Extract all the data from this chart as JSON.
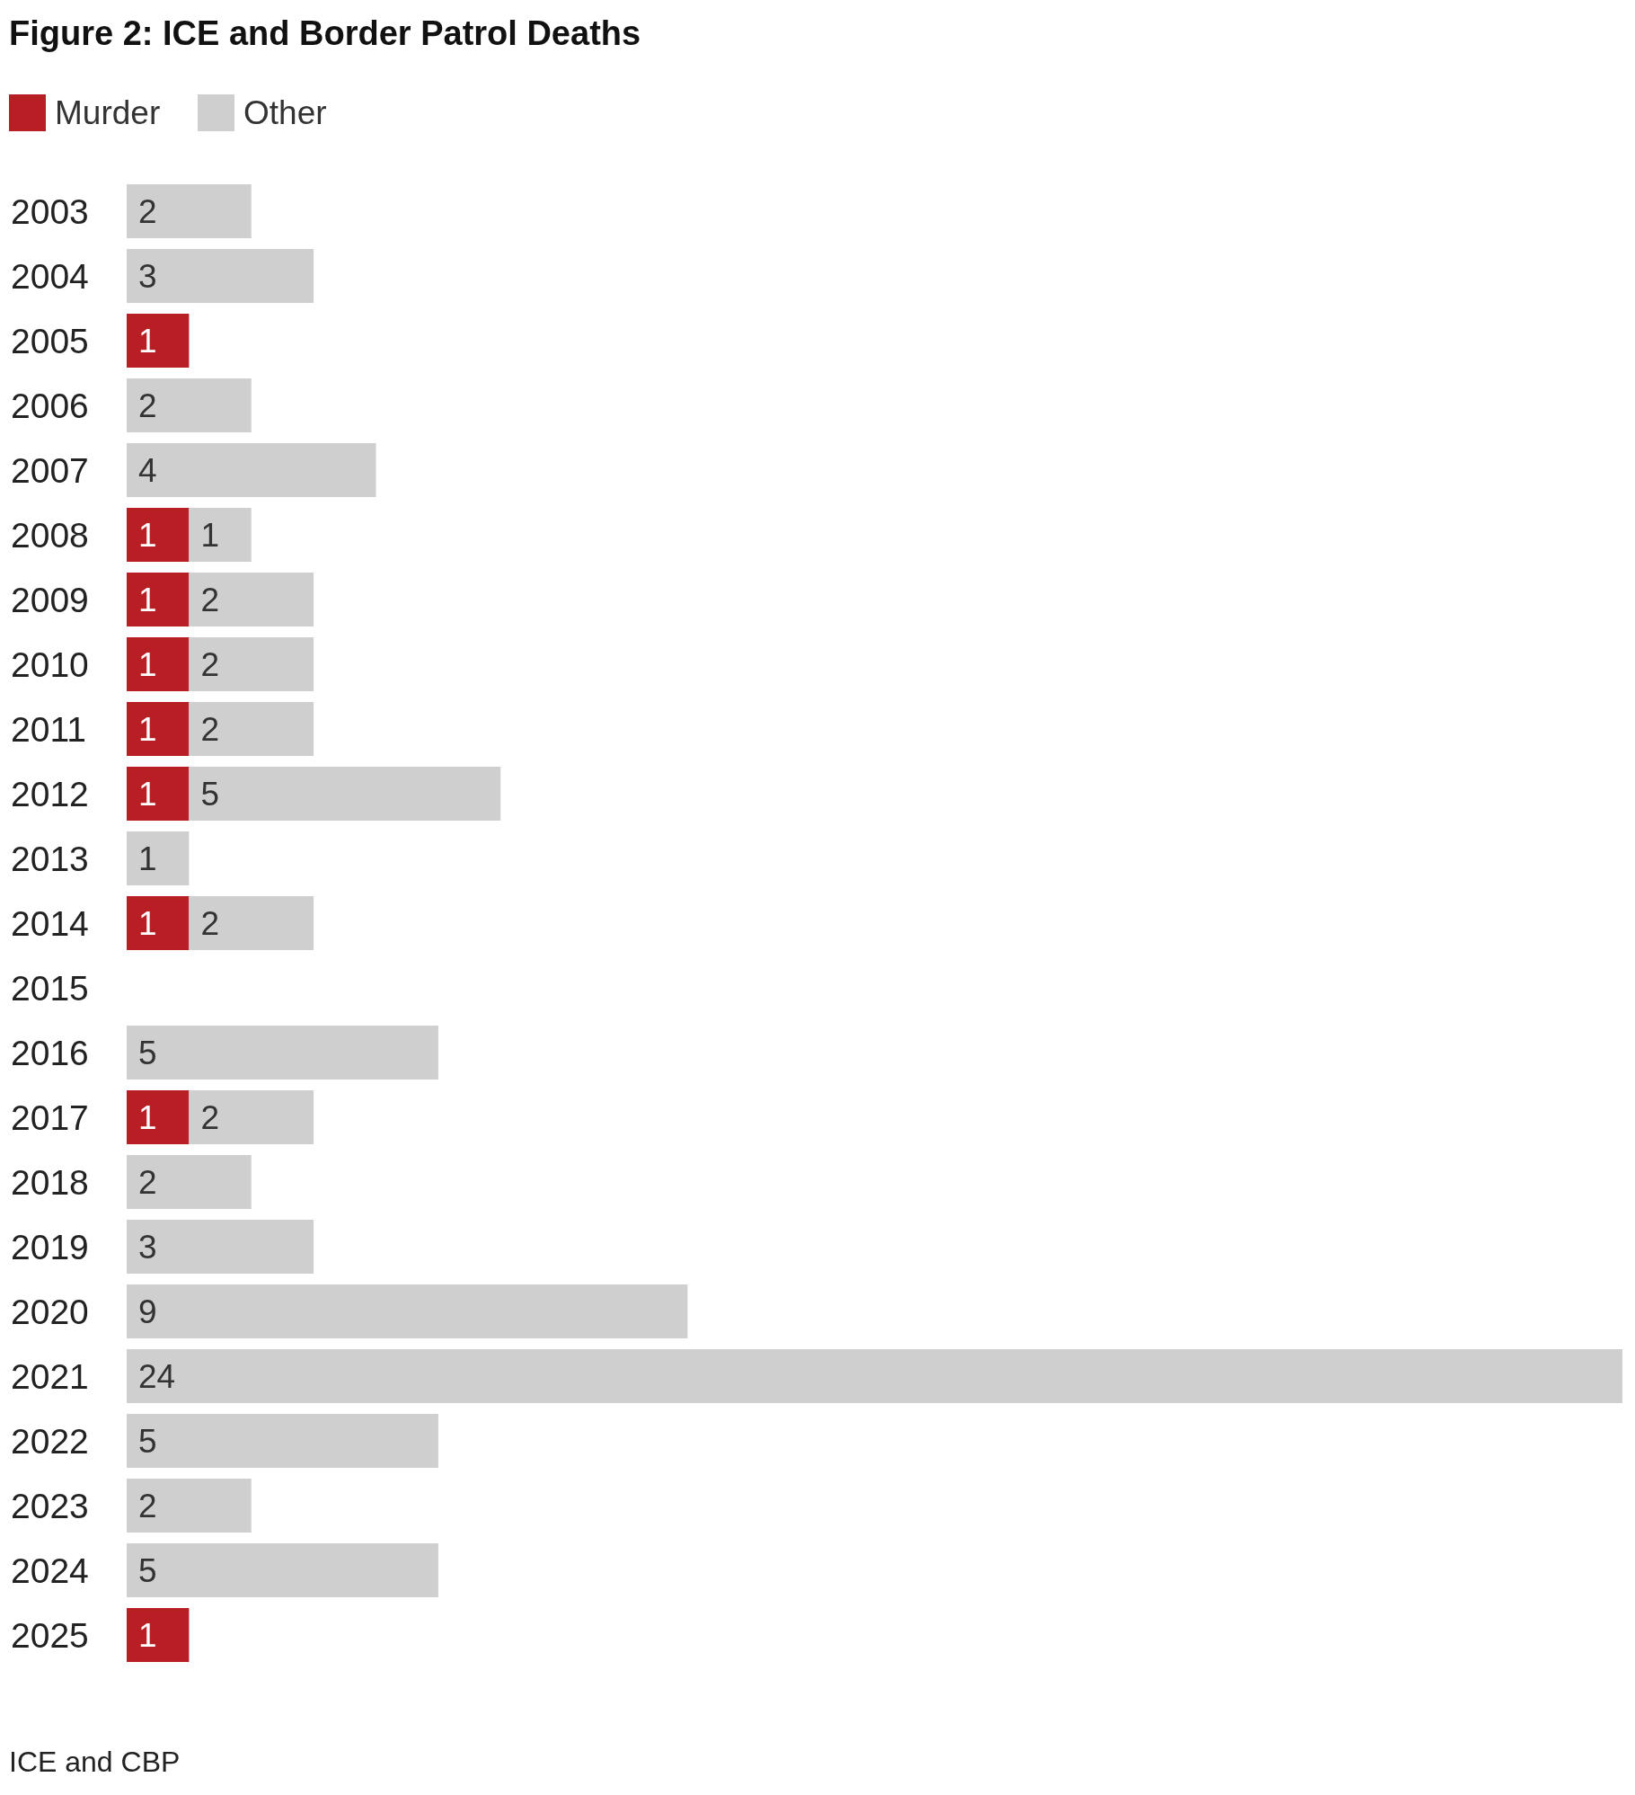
{
  "chart_data": {
    "type": "bar",
    "orientation": "horizontal",
    "stacked": true,
    "title": "Figure 2: ICE and Border Patrol Deaths",
    "categories": [
      "2003",
      "2004",
      "2005",
      "2006",
      "2007",
      "2008",
      "2009",
      "2010",
      "2011",
      "2012",
      "2013",
      "2014",
      "2015",
      "2016",
      "2017",
      "2018",
      "2019",
      "2020",
      "2021",
      "2022",
      "2023",
      "2024",
      "2025"
    ],
    "series": [
      {
        "name": "Murder",
        "color": "#b81f25",
        "values": [
          null,
          null,
          1,
          null,
          null,
          1,
          1,
          1,
          1,
          1,
          null,
          1,
          null,
          null,
          1,
          null,
          null,
          null,
          null,
          null,
          null,
          null,
          1
        ]
      },
      {
        "name": "Other",
        "color": "#cfcfcf",
        "values": [
          2,
          3,
          null,
          2,
          4,
          1,
          2,
          2,
          2,
          5,
          1,
          2,
          null,
          5,
          2,
          2,
          3,
          9,
          24,
          5,
          2,
          5,
          null
        ]
      }
    ],
    "xlim": [
      0,
      24
    ],
    "tick_labels": "y",
    "data_labels": true,
    "legend": "top left",
    "annotations": [
      "ICE and CBP"
    ]
  }
}
